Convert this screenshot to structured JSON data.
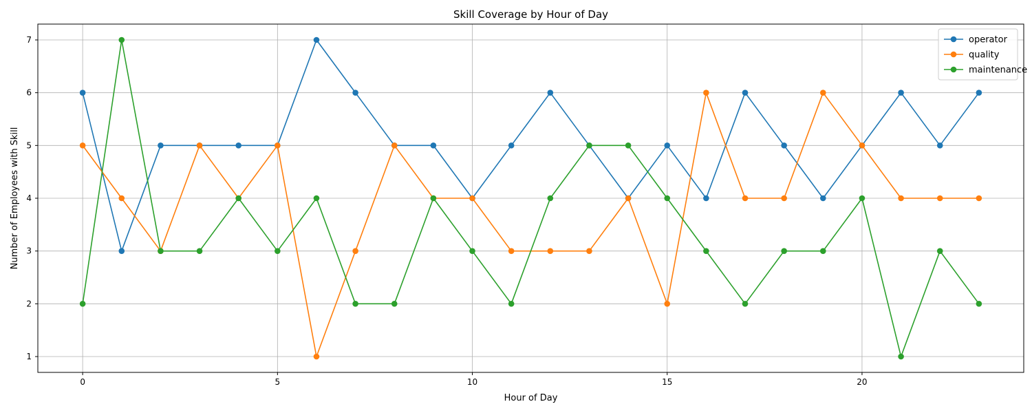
{
  "chart_data": {
    "type": "line",
    "title": "Skill Coverage by Hour of Day",
    "xlabel": "Hour of Day",
    "ylabel": "Number of Employees with Skill",
    "x": [
      0,
      1,
      2,
      3,
      4,
      5,
      6,
      7,
      8,
      9,
      10,
      11,
      12,
      13,
      14,
      15,
      16,
      17,
      18,
      19,
      20,
      21,
      22,
      23
    ],
    "xlim": [
      -1.15,
      24.15
    ],
    "ylim": [
      0.7,
      7.3
    ],
    "xticks": [
      0,
      5,
      10,
      15,
      20
    ],
    "yticks": [
      1,
      2,
      3,
      4,
      5,
      6,
      7
    ],
    "grid": true,
    "legend_position": "top-right",
    "marker": "circle",
    "series": [
      {
        "name": "operator",
        "color": "#1f77b4",
        "values": [
          6,
          3,
          5,
          5,
          5,
          5,
          7,
          6,
          5,
          5,
          4,
          5,
          6,
          5,
          4,
          5,
          4,
          6,
          5,
          4,
          5,
          6,
          5,
          6
        ]
      },
      {
        "name": "quality",
        "color": "#ff7f0e",
        "values": [
          5,
          4,
          3,
          5,
          4,
          5,
          1,
          3,
          5,
          4,
          4,
          3,
          3,
          3,
          4,
          2,
          6,
          4,
          4,
          6,
          5,
          4,
          4,
          4
        ]
      },
      {
        "name": "maintenance",
        "color": "#2ca02c",
        "values": [
          2,
          7,
          3,
          3,
          4,
          3,
          4,
          2,
          2,
          4,
          3,
          2,
          4,
          5,
          5,
          4,
          3,
          2,
          3,
          3,
          4,
          1,
          3,
          2
        ]
      }
    ]
  }
}
